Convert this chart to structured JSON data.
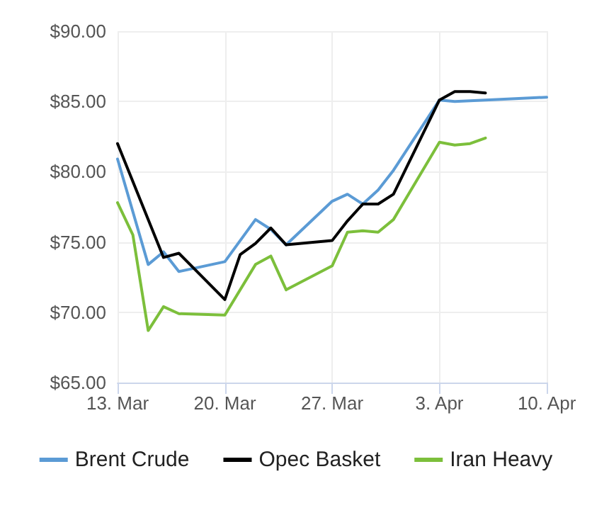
{
  "chart_data": {
    "type": "line",
    "xlim": [
      "--03-13",
      "--04-10"
    ],
    "xticks": [
      {
        "value": "--03-13",
        "label": "13. Mar"
      },
      {
        "value": "--03-20",
        "label": "20. Mar"
      },
      {
        "value": "--03-27",
        "label": "27. Mar"
      },
      {
        "value": "--04-03",
        "label": "3. Apr"
      },
      {
        "value": "--04-10",
        "label": "10. Apr"
      }
    ],
    "ylim": [
      65,
      90
    ],
    "yticks": [
      {
        "value": 65,
        "label": "$65.00"
      },
      {
        "value": 70,
        "label": "$70.00"
      },
      {
        "value": 75,
        "label": "$75.00"
      },
      {
        "value": 80,
        "label": "$80.00"
      },
      {
        "value": 85,
        "label": "$85.00"
      },
      {
        "value": 90,
        "label": "$90.00"
      }
    ],
    "grid": true,
    "legend": "bottom",
    "marker": "none",
    "line_style": "solid",
    "series": [
      {
        "name": "Brent Crude",
        "color": "#5b9bd5",
        "x": [
          "--03-13",
          "--03-15",
          "--03-16",
          "--03-17",
          "--03-20",
          "--03-22",
          "--03-23",
          "--03-24",
          "--03-27",
          "--03-28",
          "--03-29",
          "--03-30",
          "--03-31",
          "--04-03",
          "--04-04",
          "--04-06",
          "--04-10"
        ],
        "values": [
          80.9,
          73.4,
          74.3,
          72.9,
          73.6,
          76.6,
          75.9,
          74.8,
          77.9,
          78.4,
          77.7,
          78.7,
          80.1,
          85.1,
          85.0,
          85.1,
          85.3
        ]
      },
      {
        "name": "Opec Basket",
        "color": "#000000",
        "x": [
          "--03-13",
          "--03-16",
          "--03-17",
          "--03-20",
          "--03-21",
          "--03-22",
          "--03-23",
          "--03-24",
          "--03-27",
          "--03-28",
          "--03-29",
          "--03-30",
          "--03-31",
          "--04-03",
          "--04-04",
          "--04-05",
          "--04-06"
        ],
        "values": [
          82.0,
          73.9,
          74.2,
          70.9,
          74.1,
          74.9,
          76.0,
          74.8,
          75.1,
          76.5,
          77.7,
          77.7,
          78.4,
          85.1,
          85.7,
          85.7,
          85.6
        ]
      },
      {
        "name": "Iran Heavy",
        "color": "#7cbf3b",
        "x": [
          "--03-13",
          "--03-14",
          "--03-15",
          "--03-16",
          "--03-17",
          "--03-20",
          "--03-22",
          "--03-23",
          "--03-24",
          "--03-27",
          "--03-28",
          "--03-29",
          "--03-30",
          "--03-31",
          "--04-03",
          "--04-04",
          "--04-05",
          "--04-06"
        ],
        "values": [
          77.8,
          75.5,
          68.7,
          70.4,
          69.9,
          69.8,
          73.4,
          74.0,
          71.6,
          73.3,
          75.7,
          75.8,
          75.7,
          76.6,
          82.1,
          81.9,
          82.0,
          82.4
        ]
      }
    ]
  }
}
